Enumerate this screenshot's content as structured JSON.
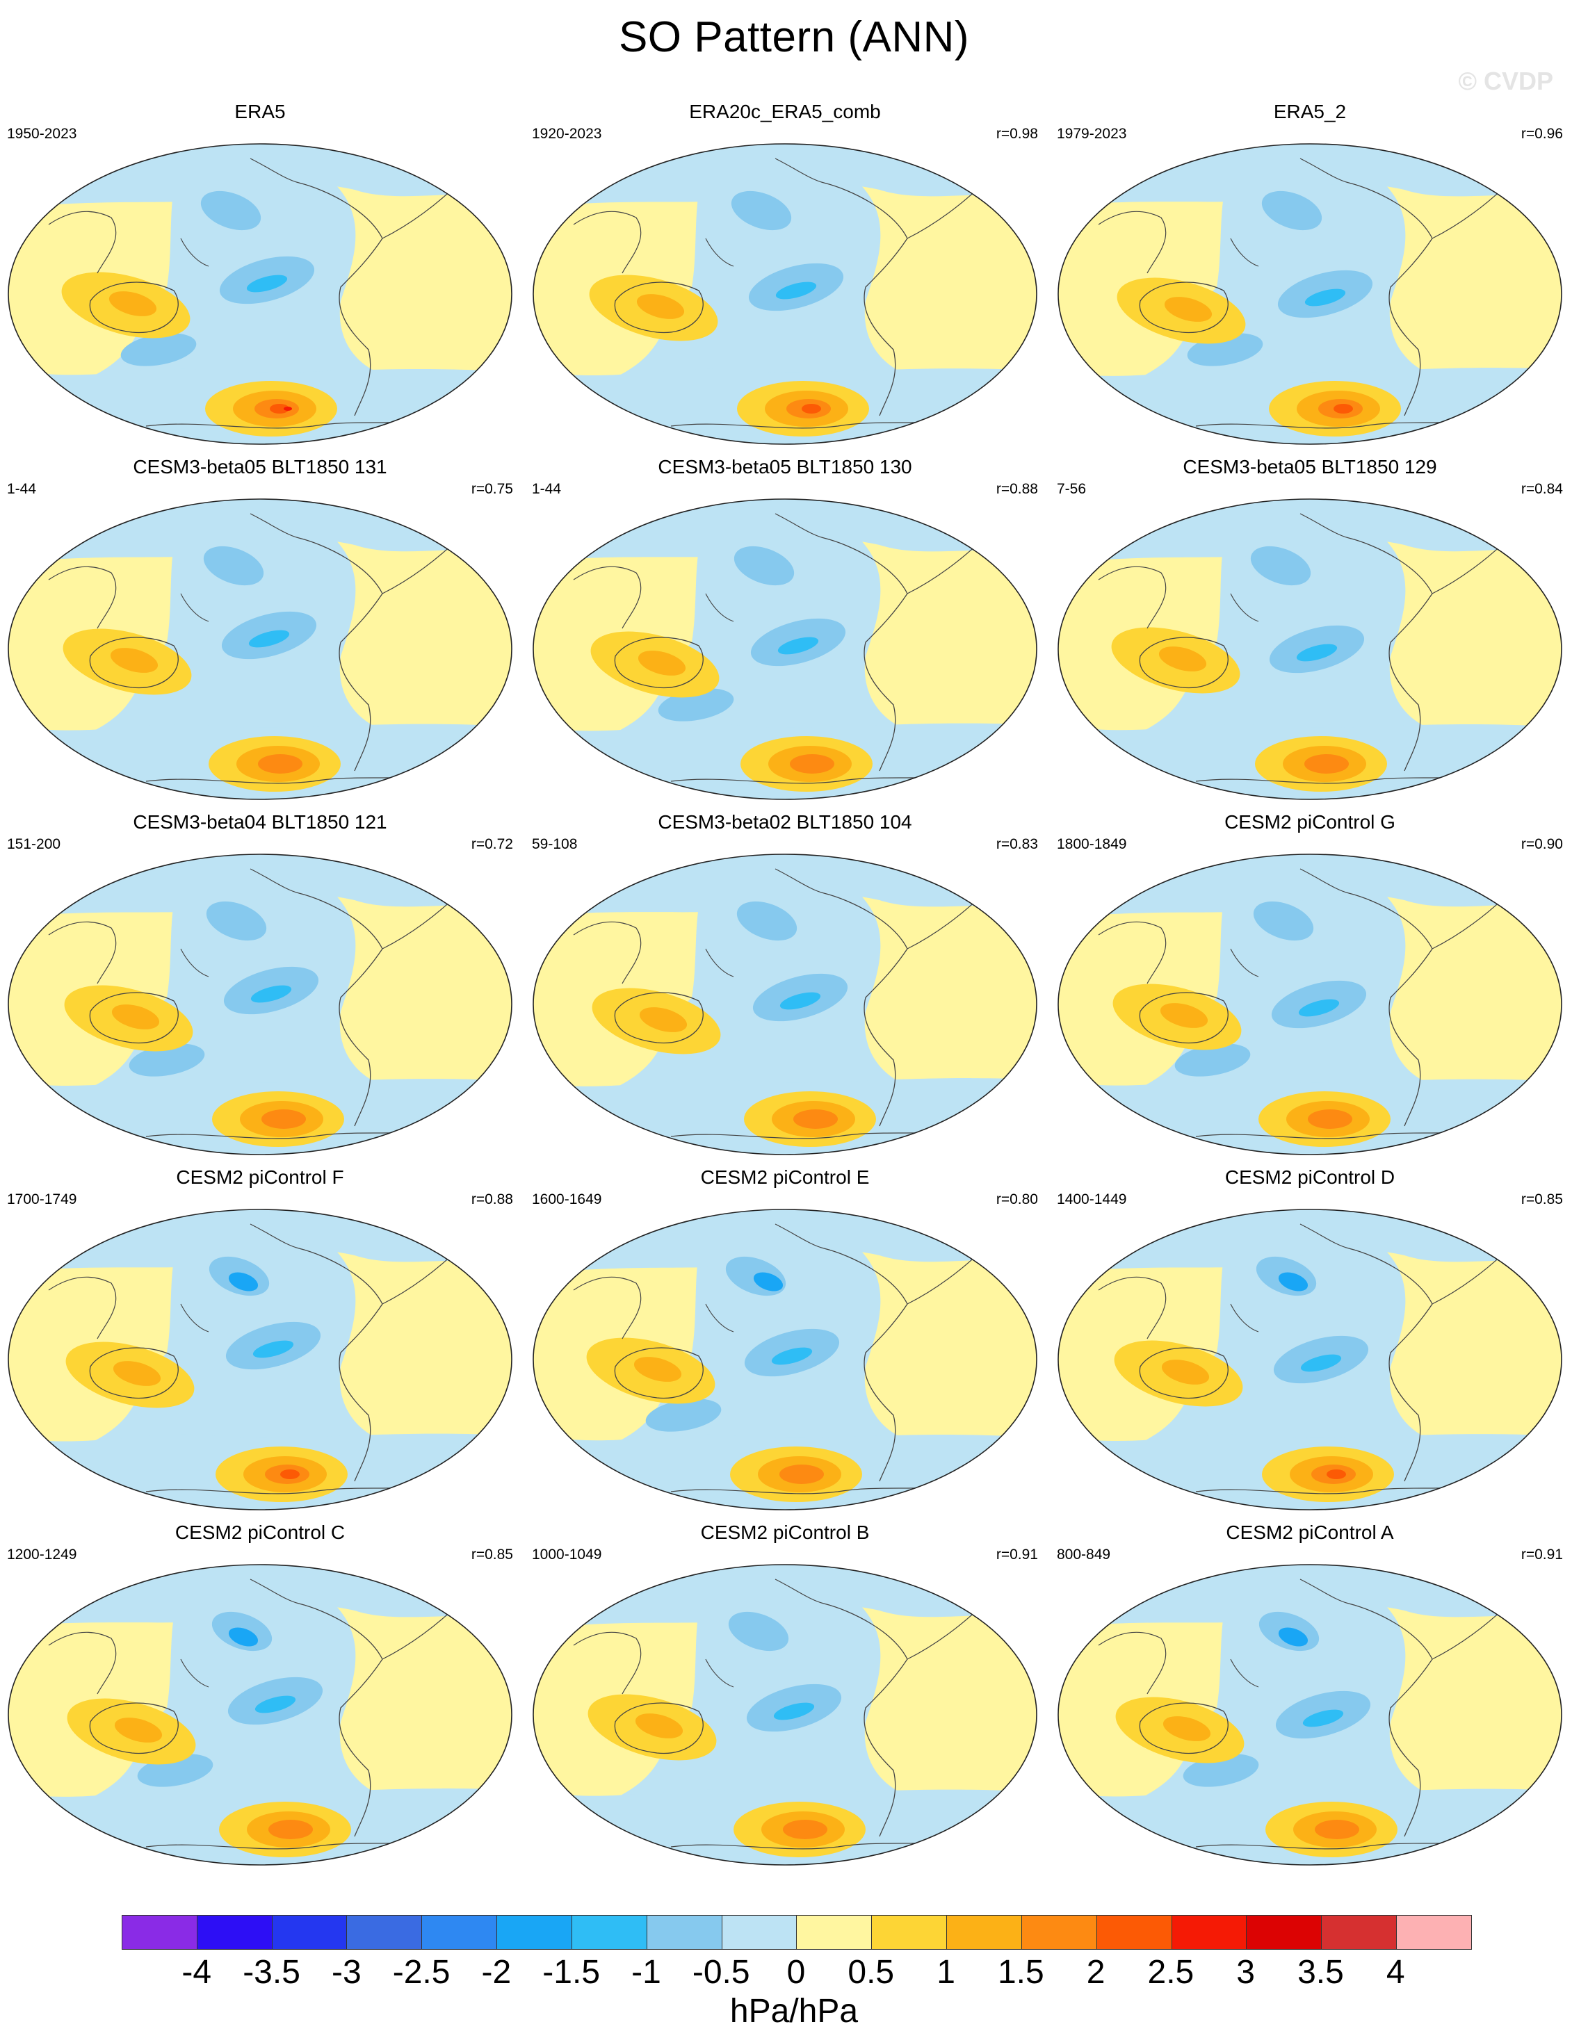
{
  "title": "SO Pattern (ANN)",
  "watermark": "© CVDP",
  "panels": [
    {
      "title": "ERA5",
      "years": "1950-2023",
      "r": ""
    },
    {
      "title": "ERA20c_ERA5_comb",
      "years": "1920-2023",
      "r": "r=0.98"
    },
    {
      "title": "ERA5_2",
      "years": "1979-2023",
      "r": "r=0.96"
    },
    {
      "title": "CESM3-beta05 BLT1850 131",
      "years": "1-44",
      "r": "r=0.75"
    },
    {
      "title": "CESM3-beta05 BLT1850 130",
      "years": "1-44",
      "r": "r=0.88"
    },
    {
      "title": "CESM3-beta05 BLT1850 129",
      "years": "7-56",
      "r": "r=0.84"
    },
    {
      "title": "CESM3-beta04 BLT1850 121",
      "years": "151-200",
      "r": "r=0.72"
    },
    {
      "title": "CESM3-beta02 BLT1850 104",
      "years": "59-108",
      "r": "r=0.83"
    },
    {
      "title": "CESM2 piControl G",
      "years": "1800-1849",
      "r": "r=0.90"
    },
    {
      "title": "CESM2 piControl F",
      "years": "1700-1749",
      "r": "r=0.88"
    },
    {
      "title": "CESM2 piControl E",
      "years": "1600-1649",
      "r": "r=0.80"
    },
    {
      "title": "CESM2 piControl D",
      "years": "1400-1449",
      "r": "r=0.85"
    },
    {
      "title": "CESM2 piControl C",
      "years": "1200-1249",
      "r": "r=0.85"
    },
    {
      "title": "CESM2 piControl B",
      "years": "1000-1049",
      "r": "r=0.91"
    },
    {
      "title": "CESM2 piControl A",
      "years": "800-849",
      "r": "r=0.91"
    }
  ],
  "colorbar": {
    "units": "hPa/hPa",
    "ticks": [
      "-4",
      "-3.5",
      "-3",
      "-2.5",
      "-2",
      "-1.5",
      "-1",
      "-0.5",
      "0",
      "0.5",
      "1",
      "1.5",
      "2",
      "2.5",
      "3",
      "3.5",
      "4"
    ],
    "colors": [
      "#8a2be6",
      "#2d0ef5",
      "#2437f0",
      "#3a6be2",
      "#2e88f2",
      "#19a6f5",
      "#2fbdf5",
      "#86c9ee",
      "#bde3f4",
      "#fff6a0",
      "#fdd535",
      "#fcb116",
      "#fd8a12",
      "#fc5a05",
      "#f51a05",
      "#dc0303",
      "#d63030",
      "#fdb1b3"
    ]
  }
}
